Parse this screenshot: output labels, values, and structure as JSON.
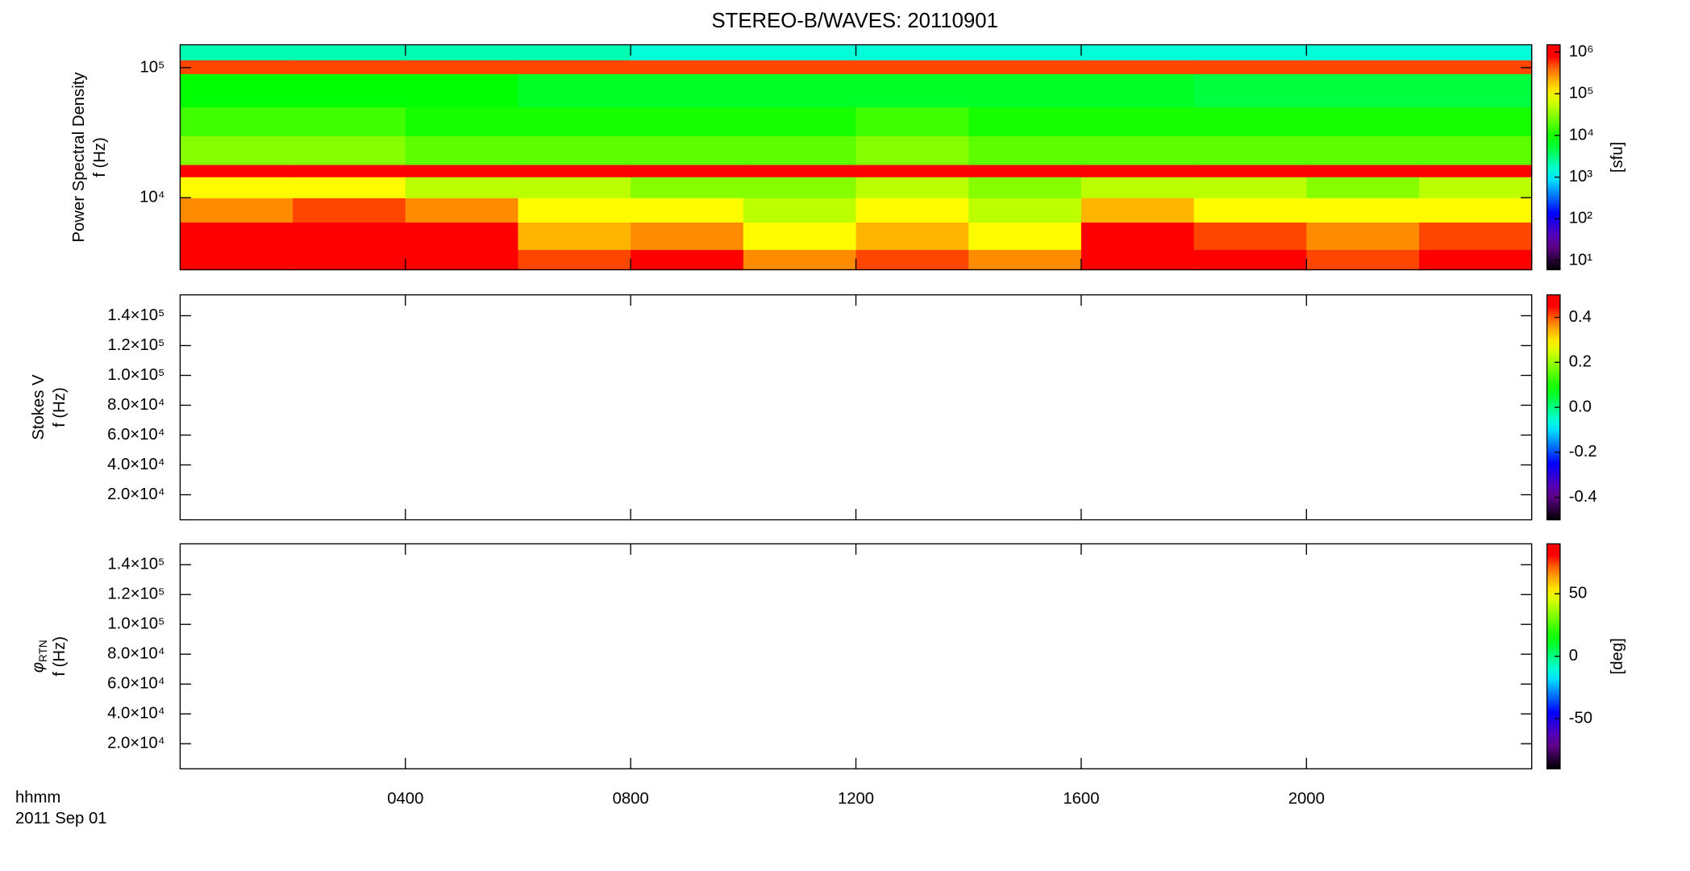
{
  "title": "STEREO-B/WAVES: 20110901",
  "x_axis_label": "hhmm",
  "date_label": "2011 Sep 01",
  "time_axis": {
    "xlim": [
      0,
      24
    ],
    "xticks": [
      {
        "value": 4,
        "label": "0400"
      },
      {
        "value": 8,
        "label": "0800"
      },
      {
        "value": 12,
        "label": "1200"
      },
      {
        "value": 16,
        "label": "1600"
      },
      {
        "value": 20,
        "label": "2000"
      }
    ]
  },
  "chart_data": [
    {
      "type": "heatmap",
      "ylabel": [
        "Power Spectral Density",
        "f (Hz)"
      ],
      "log_y": true,
      "ylim": [
        2790,
        150000
      ],
      "yticks": [
        {
          "value": 10000,
          "label": "10⁴"
        },
        {
          "value": 100000,
          "label": "10⁵"
        }
      ],
      "xbins": [
        0,
        2,
        4,
        6,
        8,
        10,
        12,
        14,
        16,
        18,
        20,
        22,
        24
      ],
      "ybins": [
        2790,
        4000,
        6500,
        10000,
        14500,
        18000,
        30000,
        50000,
        90000,
        115000,
        150000
      ],
      "values": [
        [
          1000000,
          1000000,
          1000000,
          500000,
          1000000,
          300000,
          500000,
          300000,
          1000000,
          1000000,
          500000,
          1000000
        ],
        [
          1000000,
          1000000,
          1000000,
          200000,
          300000,
          100000,
          200000,
          100000,
          1000000,
          500000,
          300000,
          500000
        ],
        [
          300000,
          500000,
          300000,
          100000,
          100000,
          50000,
          100000,
          50000,
          200000,
          100000,
          100000,
          100000
        ],
        [
          100000,
          100000,
          50000,
          50000,
          30000,
          30000,
          50000,
          30000,
          50000,
          50000,
          30000,
          50000
        ],
        [
          1000000,
          1000000,
          1000000,
          1000000,
          1000000,
          1000000,
          1000000,
          1000000,
          1000000,
          1000000,
          1000000,
          1000000
        ],
        [
          30000,
          30000,
          20000,
          20000,
          20000,
          20000,
          30000,
          20000,
          20000,
          20000,
          20000,
          20000
        ],
        [
          15000,
          15000,
          10000,
          10000,
          10000,
          10000,
          15000,
          10000,
          10000,
          10000,
          10000,
          10000
        ],
        [
          8000,
          8000,
          8000,
          6000,
          6000,
          6000,
          6000,
          6000,
          6000,
          5000,
          5000,
          5000
        ],
        [
          500000,
          500000,
          500000,
          500000,
          500000,
          500000,
          500000,
          500000,
          500000,
          500000,
          500000,
          500000
        ],
        [
          2000,
          2000,
          2000,
          2000,
          1500,
          1500,
          1500,
          1500,
          1500,
          1500,
          1500,
          1500
        ]
      ],
      "zlim": [
        6,
        1500000
      ],
      "log_z": true,
      "zticks": [
        {
          "value": 10,
          "label": "10¹"
        },
        {
          "value": 100,
          "label": "10²"
        },
        {
          "value": 1000,
          "label": "10³"
        },
        {
          "value": 10000,
          "label": "10⁴"
        },
        {
          "value": 100000,
          "label": "10⁵"
        },
        {
          "value": 1000000,
          "label": "10⁶"
        }
      ],
      "zlabel": "[sfu]"
    },
    {
      "type": "heatmap",
      "ylabel": [
        "Stokes V",
        "f (Hz)"
      ],
      "log_y": false,
      "ylim": [
        3200,
        154000
      ],
      "yticks": [
        {
          "value": 20000,
          "label": "2.0×10⁴"
        },
        {
          "value": 40000,
          "label": "4.0×10⁴"
        },
        {
          "value": 60000,
          "label": "6.0×10⁴"
        },
        {
          "value": 80000,
          "label": "8.0×10⁴"
        },
        {
          "value": 100000,
          "label": "1.0×10⁵"
        },
        {
          "value": 120000,
          "label": "1.2×10⁵"
        },
        {
          "value": 140000,
          "label": "1.4×10⁵"
        }
      ],
      "zlim": [
        -0.5,
        0.5
      ],
      "log_z": false,
      "zticks": [
        -0.4,
        -0.2,
        {
          "value": 0,
          "label": "0.0"
        },
        0.2,
        0.4
      ]
    },
    {
      "type": "heatmap",
      "ylabel": [
        {
          "symbol": "φ",
          "subscript": "RTN"
        },
        "f (Hz)"
      ],
      "log_y": false,
      "ylim": [
        3200,
        154000
      ],
      "yticks": [
        {
          "value": 20000,
          "label": "2.0×10⁴"
        },
        {
          "value": 40000,
          "label": "4.0×10⁴"
        },
        {
          "value": 60000,
          "label": "6.0×10⁴"
        },
        {
          "value": 80000,
          "label": "8.0×10⁴"
        },
        {
          "value": 100000,
          "label": "1.0×10⁵"
        },
        {
          "value": 120000,
          "label": "1.2×10⁵"
        },
        {
          "value": 140000,
          "label": "1.4×10⁵"
        }
      ],
      "zlim": [
        -90,
        90
      ],
      "log_z": false,
      "zticks": [
        -50,
        0,
        50
      ],
      "zlabel": "[deg]"
    }
  ]
}
